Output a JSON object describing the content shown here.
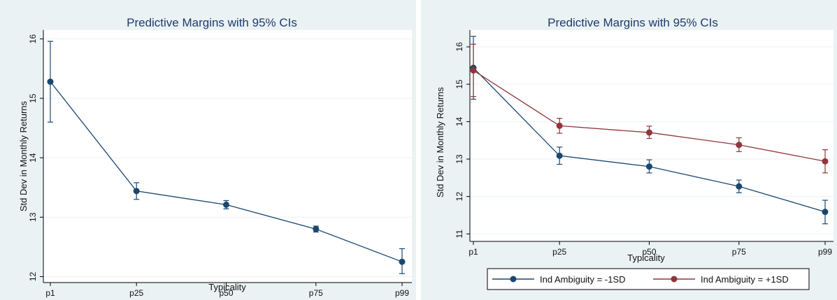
{
  "colors": {
    "panel_bg": "#eaf2f3",
    "plot_bg": "#ffffff",
    "grid": "#eaf2f3",
    "title": "#1e3a6e",
    "series_neg": "#1a476f",
    "series_pos": "#90353b"
  },
  "chart_data": [
    {
      "type": "line",
      "title": "Predictive Margins with 95% CIs",
      "xlabel": "Typicality",
      "ylabel": "Std Dev in Monthly Returns",
      "x_categories": [
        "p1",
        "p25",
        "p50",
        "p75",
        "p99"
      ],
      "x_positions": [
        1,
        25,
        50,
        75,
        99
      ],
      "ylim": [
        11.9,
        16.15
      ],
      "yticks": [
        "12",
        "13",
        "14",
        "15",
        "16"
      ],
      "grid": true,
      "legend": "none",
      "series": [
        {
          "values": [
            15.28,
            13.44,
            13.21,
            12.8,
            12.25
          ],
          "ci_low": [
            14.6,
            13.3,
            13.14,
            12.75,
            12.05
          ],
          "ci_high": [
            15.96,
            13.58,
            13.28,
            12.85,
            12.47
          ]
        }
      ]
    },
    {
      "type": "line",
      "title": "Predictive Margins with 95% CIs",
      "xlabel": "Typicality",
      "ylabel": "Std Dev in Monthly Returns",
      "x_categories": [
        "p1",
        "p25",
        "p50",
        "p75",
        "p99"
      ],
      "x_positions": [
        1,
        25,
        50,
        75,
        99
      ],
      "ylim": [
        10.8,
        16.45
      ],
      "yticks": [
        "11",
        "12",
        "13",
        "14",
        "15",
        "16"
      ],
      "grid": true,
      "legend": "bottom",
      "series": [
        {
          "name": "Ind Ambiguity = -1SD",
          "color": "#1a476f",
          "values": [
            15.44,
            13.09,
            12.8,
            12.27,
            11.59
          ],
          "ci_low": [
            14.6,
            12.86,
            12.63,
            12.1,
            11.27
          ],
          "ci_high": [
            16.28,
            13.32,
            12.98,
            12.44,
            11.9
          ]
        },
        {
          "name": "Ind Ambiguity = +1SD",
          "color": "#90353b",
          "values": [
            15.37,
            13.89,
            13.71,
            13.38,
            12.94
          ],
          "ci_low": [
            14.67,
            13.69,
            13.55,
            13.2,
            12.63
          ],
          "ci_high": [
            16.07,
            14.09,
            13.88,
            13.57,
            13.25
          ]
        }
      ]
    }
  ]
}
